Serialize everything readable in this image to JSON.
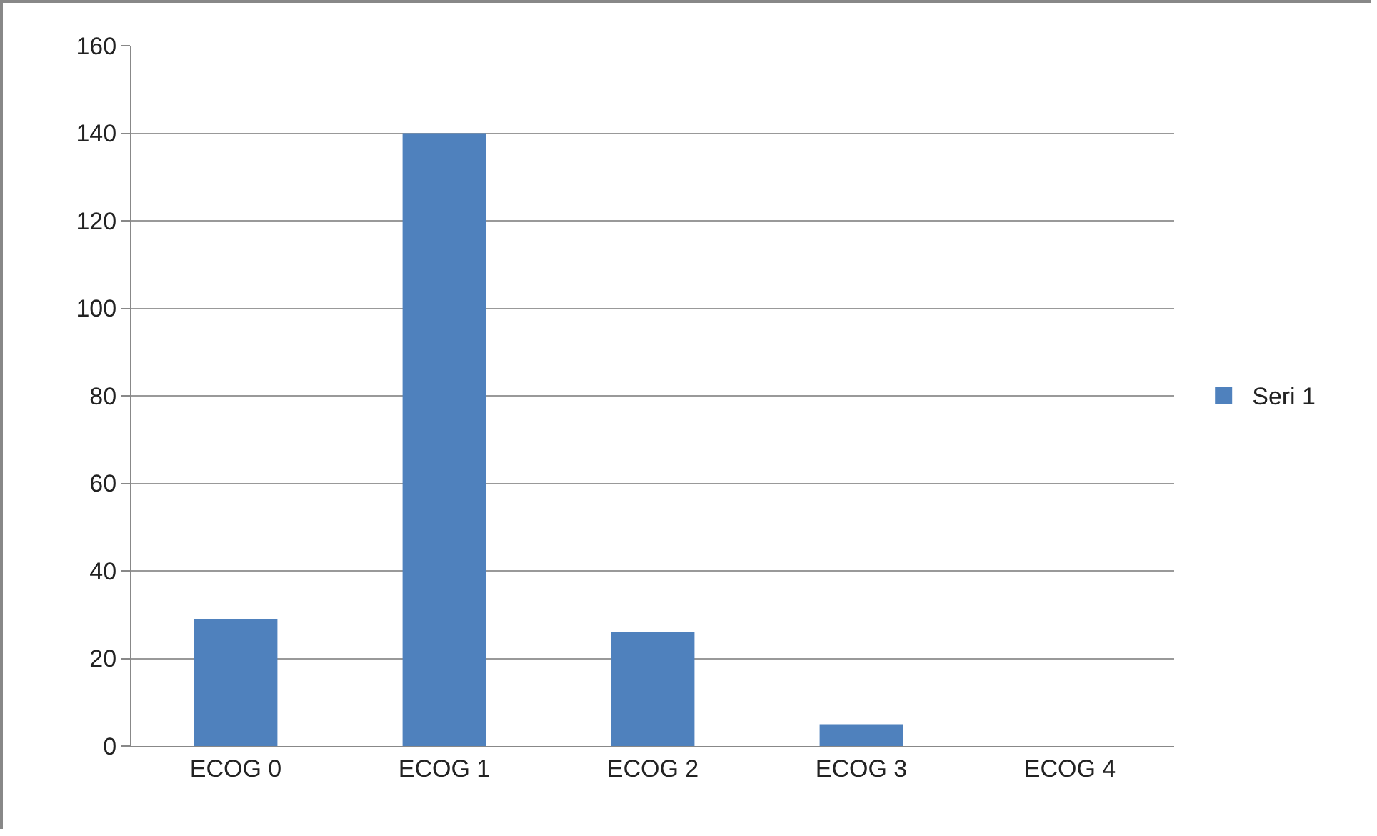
{
  "chart_data": {
    "type": "bar",
    "categories": [
      "ECOG 0",
      "ECOG 1",
      "ECOG 2",
      "ECOG 3",
      "ECOG 4"
    ],
    "series": [
      {
        "name": "Seri 1",
        "color": "#4f81bd",
        "values": [
          29,
          140,
          26,
          5,
          0
        ]
      }
    ],
    "ylim": [
      0,
      160
    ],
    "yticks": [
      0,
      20,
      40,
      60,
      80,
      100,
      120,
      140,
      160
    ],
    "grid": "y",
    "legend": "right"
  }
}
